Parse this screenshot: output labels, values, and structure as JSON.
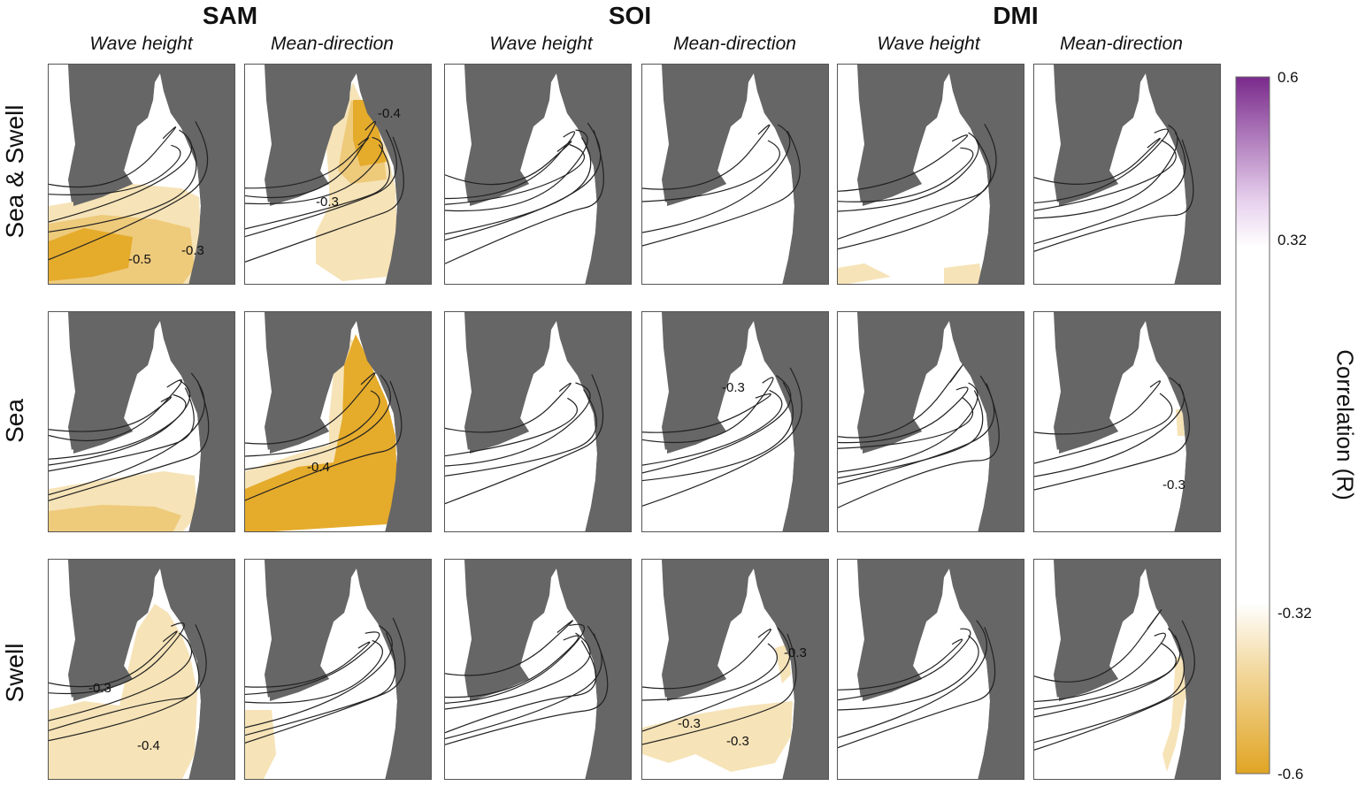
{
  "groups": [
    {
      "title": "SAM",
      "columns": [
        "Wave height",
        "Mean-direction"
      ]
    },
    {
      "title": "SOI",
      "columns": [
        "Wave height",
        "Mean-direction"
      ]
    },
    {
      "title": "DMI",
      "columns": [
        "Wave height",
        "Mean-direction"
      ]
    }
  ],
  "rows": [
    "Sea & Swell",
    "Sea",
    "Swell"
  ],
  "colorbar": {
    "title": "Correlation (R)",
    "ticks": [
      "0.6",
      "0.32",
      "-0.32",
      "-0.6"
    ],
    "colors": {
      "max": "#7a2a8c",
      "mid": "#ffffff",
      "min": "#e0a524"
    }
  },
  "colors": {
    "land": "#666666",
    "ocean": "#ffffff",
    "light_orange": "#f6e3b7",
    "mid_orange": "#eeca7b",
    "dark_orange": "#e5ab2b"
  },
  "contour_labels": {
    "p1": [
      "-0.5",
      "-0.3"
    ],
    "p2": [
      "-0.3",
      "-0.4"
    ],
    "p8": [
      "-0.4"
    ],
    "p10": [
      "-0.3"
    ],
    "p12": [
      "-0.3"
    ],
    "p13": [
      "-0.3",
      "-0.4"
    ],
    "p16": [
      "-0.3",
      "-0.3",
      "-0.3"
    ]
  }
}
